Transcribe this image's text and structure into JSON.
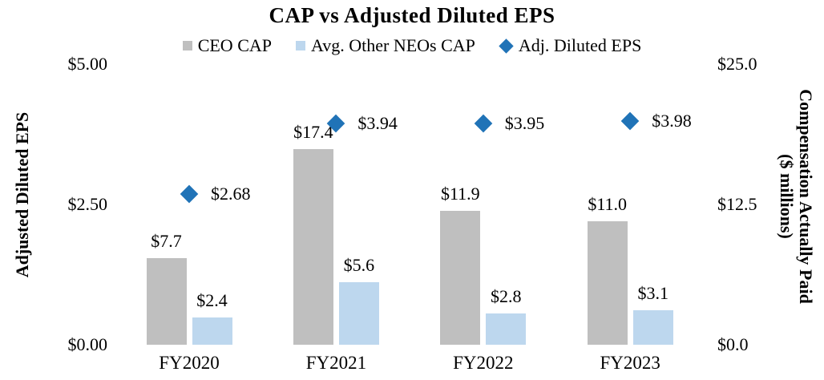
{
  "chart_data": {
    "type": "bar",
    "title": "CAP vs Adjusted Diluted EPS",
    "categories": [
      "FY2020",
      "FY2021",
      "FY2022",
      "FY2023"
    ],
    "series": [
      {
        "name": "CEO CAP",
        "type": "bar",
        "axis": "right",
        "color": "#BFBFBF",
        "values": [
          7.7,
          17.4,
          11.9,
          11.0
        ],
        "labels": [
          "$7.7",
          "$17.4",
          "$11.9",
          "$11.0"
        ]
      },
      {
        "name": "Avg. Other NEOs CAP",
        "type": "bar",
        "axis": "right",
        "color": "#BDD7EE",
        "values": [
          2.4,
          5.6,
          2.8,
          3.1
        ],
        "labels": [
          "$2.4",
          "$5.6",
          "$2.8",
          "$3.1"
        ]
      },
      {
        "name": "Adj. Diluted EPS",
        "type": "scatter",
        "marker": "diamond",
        "axis": "left",
        "color": "#2073B7",
        "values": [
          2.68,
          3.94,
          3.95,
          3.98
        ],
        "labels": [
          "$2.68",
          "$3.94",
          "$3.95",
          "$3.98"
        ]
      }
    ],
    "left_axis": {
      "title": "Adjusted Diluted EPS",
      "range": [
        0,
        5
      ],
      "tick_values": [
        0,
        2.5,
        5
      ],
      "tick_labels": [
        "$0.00",
        "$2.50",
        "$5.00"
      ]
    },
    "right_axis": {
      "title_line1": "Compensation Actually Paid",
      "title_line2": "($ millions)",
      "range": [
        0,
        25
      ],
      "tick_values": [
        0,
        12.5,
        25
      ],
      "tick_labels": [
        "$0.0",
        "$12.5",
        "$25.0"
      ]
    },
    "legend_position": "top",
    "grid": false,
    "background": "#ffffff"
  }
}
